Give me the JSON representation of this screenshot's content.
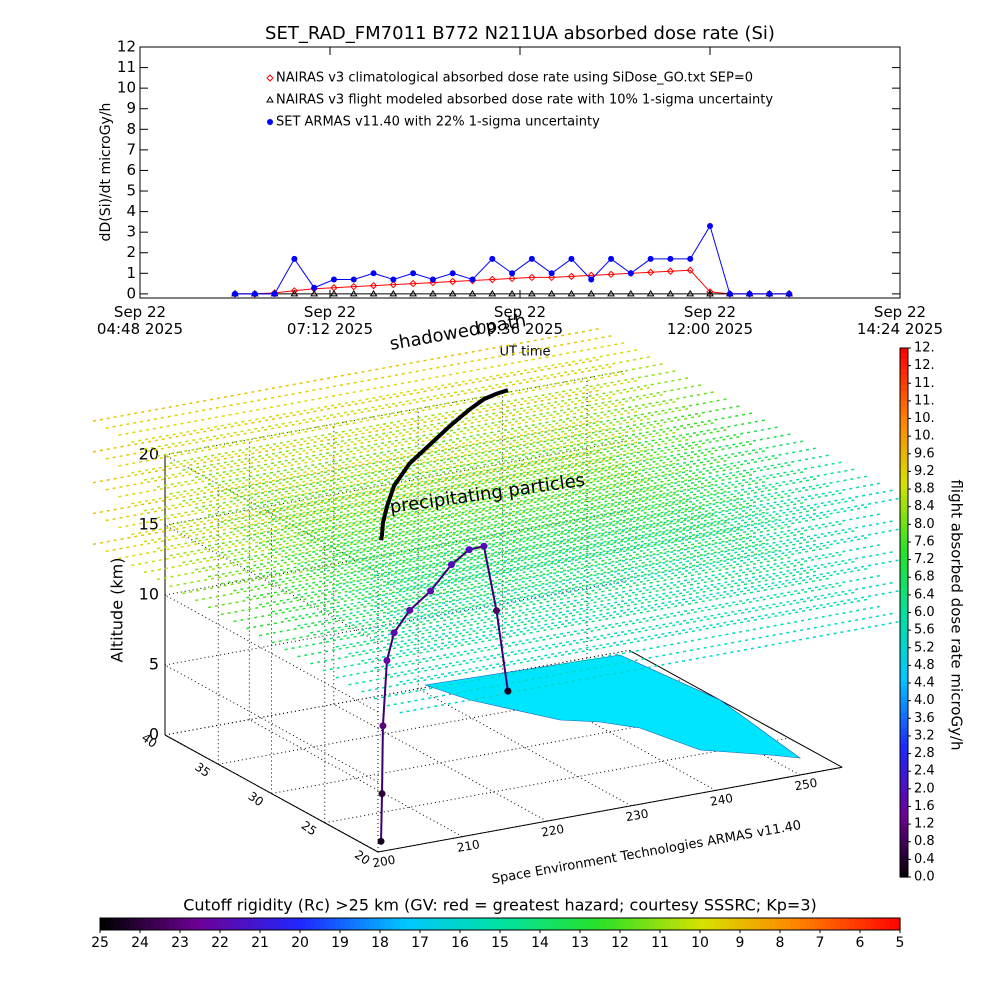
{
  "chart_data": [
    {
      "type": "line",
      "title": "SET_RAD_FM7011  B772 N211UA absorbed dose rate (Si)",
      "y_label": "dD(Si)/dt microGy/h",
      "x_label": "UT time",
      "x": [
        "2025-09-22T06:00",
        "2025-09-22T06:15",
        "2025-09-22T06:30",
        "2025-09-22T06:45",
        "2025-09-22T07:00",
        "2025-09-22T07:15",
        "2025-09-22T07:30",
        "2025-09-22T07:45",
        "2025-09-22T08:00",
        "2025-09-22T08:15",
        "2025-09-22T08:30",
        "2025-09-22T08:45",
        "2025-09-22T09:00",
        "2025-09-22T09:15",
        "2025-09-22T09:30",
        "2025-09-22T09:45",
        "2025-09-22T10:00",
        "2025-09-22T10:15",
        "2025-09-22T10:30",
        "2025-09-22T10:45",
        "2025-09-22T11:00",
        "2025-09-22T11:15",
        "2025-09-22T11:30",
        "2025-09-22T11:45",
        "2025-09-22T12:00",
        "2025-09-22T12:15",
        "2025-09-22T12:30",
        "2025-09-22T12:45",
        "2025-09-22T13:00"
      ],
      "series": [
        {
          "name": "NAIRAS v3 climatological absorbed dose rate using SiDose_GO.txt SEP=0",
          "color": "#ff0000",
          "marker": "diamond",
          "values": [
            0,
            0,
            0.05,
            0.15,
            0.25,
            0.3,
            0.35,
            0.4,
            0.45,
            0.5,
            0.55,
            0.6,
            0.65,
            0.7,
            0.75,
            0.8,
            0.8,
            0.85,
            0.9,
            0.95,
            1.0,
            1.05,
            1.1,
            1.15,
            0.1,
            0,
            0,
            0,
            0
          ]
        },
        {
          "name": "NAIRAS v3 flight modeled absorbed dose rate with 10% 1-sigma uncertainty",
          "color": "#000000",
          "marker": "triangle",
          "values": [
            0,
            0,
            0,
            0,
            0,
            0,
            0,
            0,
            0,
            0,
            0,
            0,
            0,
            0,
            0,
            0,
            0,
            0,
            0,
            0,
            0,
            0,
            0,
            0,
            0,
            0,
            0,
            0,
            0
          ]
        },
        {
          "name": "SET ARMAS v11.40 with 22% 1-sigma uncertainty",
          "color": "#0000ff",
          "marker": "circle",
          "values": [
            0,
            0,
            0,
            1.7,
            0.3,
            0.7,
            0.7,
            1,
            0.7,
            1,
            0.7,
            1,
            0.7,
            1.7,
            1,
            1.7,
            1,
            1.7,
            0.7,
            1.7,
            1,
            1.7,
            1.7,
            1.7,
            3.3,
            0,
            0,
            0,
            0
          ]
        }
      ],
      "xlim": [
        "2025-09-22T04:48",
        "2025-09-22T14:24"
      ],
      "xticks": [
        {
          "value": "2025-09-22T04:48",
          "label": "Sep 22\n04:48 2025"
        },
        {
          "value": "2025-09-22T07:12",
          "label": "Sep 22\n07:12 2025"
        },
        {
          "value": "2025-09-22T09:36",
          "label": "Sep 22\n09:36 2025"
        },
        {
          "value": "2025-09-22T12:00",
          "label": "Sep 22\n12:00 2025"
        },
        {
          "value": "2025-09-22T14:24",
          "label": "Sep 22\n14:24 2025"
        }
      ],
      "ylim": [
        -0.2,
        12
      ],
      "yticks": [
        0,
        1,
        2,
        3,
        4,
        5,
        6,
        7,
        8,
        9,
        10,
        11,
        12
      ]
    },
    {
      "type": "scatter3d",
      "z_label": "Altitude (km)",
      "annotations": [
        "shadowed path",
        "precipitating particles"
      ],
      "credit": "Space Environment Technologies ARMAS v11.40",
      "x": [
        202,
        203,
        205,
        208,
        212,
        217,
        222,
        227,
        231,
        234,
        236,
        237.6
      ],
      "y": [
        21.3,
        22,
        23.5,
        25.5,
        28,
        30.5,
        32.5,
        34.5,
        36,
        37,
        37.4,
        37.6
      ],
      "z": [
        0,
        3,
        7,
        10.5,
        11,
        11,
        11,
        11.5,
        11.5,
        11,
        6,
        0
      ],
      "color_values": [
        0.3,
        0.6,
        1.2,
        1.7,
        1.7,
        1.8,
        1.8,
        1.9,
        2.0,
        1.9,
        1.0,
        0.3
      ],
      "xlim": [
        200,
        255
      ],
      "xticks": [
        200,
        210,
        220,
        230,
        240,
        250
      ],
      "ylim": [
        20,
        40
      ],
      "yticks": [
        20,
        25,
        30,
        35,
        40
      ],
      "zlim": [
        0,
        20
      ],
      "zticks": [
        0,
        5,
        10,
        15,
        20
      ]
    },
    {
      "type": "colorbar",
      "label": "flight absorbed dose rate microGy/h",
      "clim": [
        0,
        12
      ],
      "ticks": [
        {
          "value": 0,
          "label": "0.0"
        },
        0.4,
        0.8,
        1.2,
        1.6,
        {
          "value": 2,
          "label": "2.0"
        },
        2.4,
        2.8,
        3.2,
        3.6,
        {
          "value": 4,
          "label": "4.0"
        },
        4.4,
        4.8,
        5.2,
        5.6,
        {
          "value": 6,
          "label": "6.0"
        },
        6.4,
        6.8,
        7.2,
        7.6,
        {
          "value": 8,
          "label": "8.0"
        },
        8.4,
        8.8,
        9.2,
        9.6,
        {
          "value": 10,
          "label": "10."
        },
        {
          "value": 10.4,
          "label": "10."
        },
        {
          "value": 10.8,
          "label": "11."
        },
        {
          "value": 11.2,
          "label": "11."
        },
        {
          "value": 11.6,
          "label": "12."
        },
        {
          "value": 12,
          "label": "12."
        }
      ]
    },
    {
      "type": "colorbar",
      "label": "Cutoff rigidity (Rc) >25 km (GV: red = greatest hazard; courtesy SSSRC; Kp=3)",
      "clim": [
        25,
        5
      ],
      "ticks": [
        25,
        24,
        23,
        22,
        21,
        20,
        19,
        18,
        17,
        16,
        15,
        14,
        13,
        12,
        11,
        10,
        9,
        8,
        7,
        6,
        5
      ]
    }
  ]
}
